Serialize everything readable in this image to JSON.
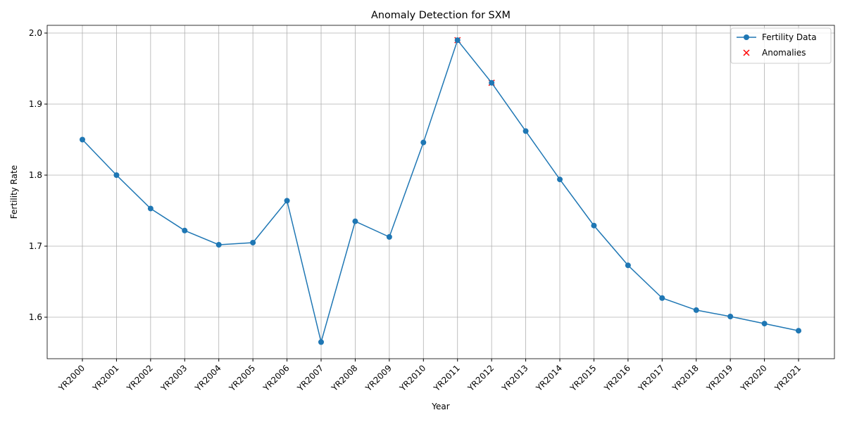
{
  "chart_data": {
    "type": "line",
    "title": "Anomaly Detection for SXM",
    "x_label": "Year",
    "y_label": "Fertility Rate",
    "categories": [
      "YR2000",
      "YR2001",
      "YR2002",
      "YR2003",
      "YR2004",
      "YR2005",
      "YR2006",
      "YR2007",
      "YR2008",
      "YR2009",
      "YR2010",
      "YR2011",
      "YR2012",
      "YR2013",
      "YR2014",
      "YR2015",
      "YR2016",
      "YR2017",
      "YR2018",
      "YR2019",
      "YR2020",
      "YR2021"
    ],
    "series": [
      {
        "name": "Fertility Data",
        "color": "#1f77b4",
        "values": [
          1.85,
          1.8,
          1.753,
          1.722,
          1.702,
          1.705,
          1.764,
          1.565,
          1.735,
          1.713,
          1.846,
          1.99,
          1.93,
          1.862,
          1.794,
          1.729,
          1.673,
          1.627,
          1.61,
          1.601,
          1.591,
          1.581
        ]
      },
      {
        "name": "Anomalies",
        "color": "#ff0000",
        "values": [
          null,
          null,
          null,
          null,
          null,
          null,
          null,
          null,
          null,
          null,
          null,
          1.99,
          1.93,
          null,
          null,
          null,
          null,
          null,
          null,
          null,
          null,
          null
        ]
      }
    ],
    "ylim": [
      1.5416,
      2.0109
    ],
    "yticks": [
      1.6,
      1.7,
      1.8,
      1.9,
      {
        "value": 2,
        "label": "2.0"
      }
    ],
    "grid": true,
    "legend": "upper right"
  }
}
